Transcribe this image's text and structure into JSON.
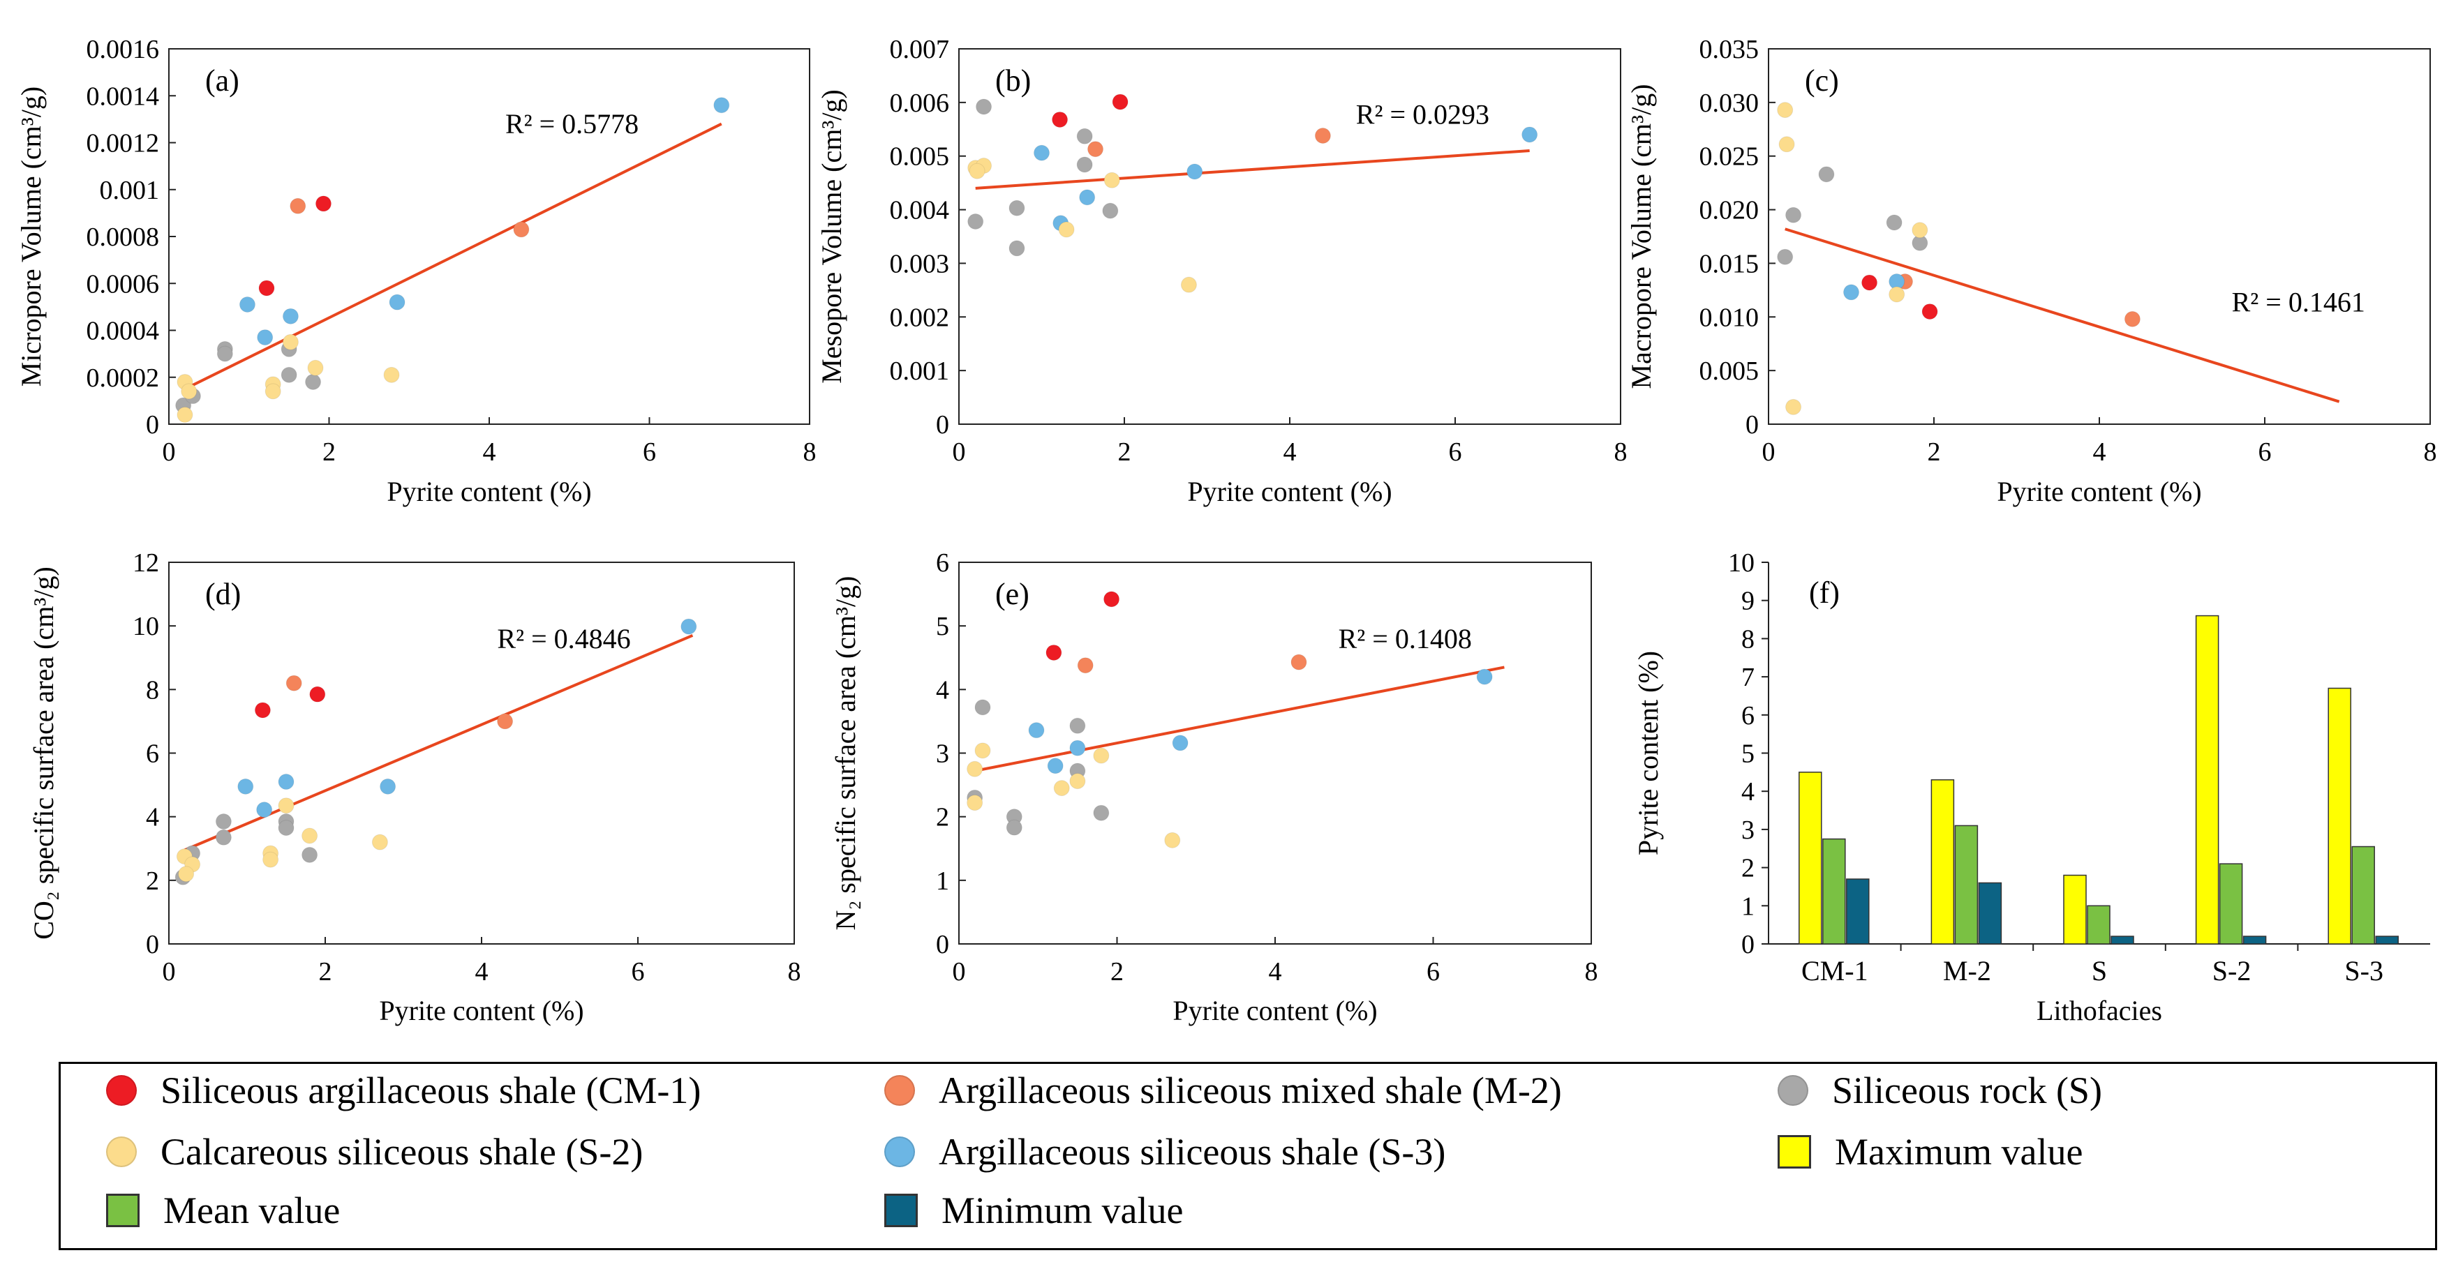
{
  "x_axis_label": "Pyrite content (%)",
  "colors": {
    "CM-1": "#ed1c24",
    "M-2": "#f4845a",
    "S": "#a8a8a8",
    "S-2": "#fcdc8c",
    "S-3": "#6cb6e4",
    "trend": "#e8461e",
    "max": "#ffff00",
    "mean": "#7ac143",
    "min": "#0c6384"
  },
  "legend": [
    {
      "type": "dot",
      "key": "CM-1",
      "label": "Siliceous argillaceous shale (CM-1)"
    },
    {
      "type": "dot",
      "key": "M-2",
      "label": "Argillaceous siliceous mixed shale (M-2)"
    },
    {
      "type": "dot",
      "key": "S",
      "label": "Siliceous rock (S)"
    },
    {
      "type": "dot",
      "key": "S-2",
      "label": "Calcareous siliceous shale (S-2)"
    },
    {
      "type": "dot",
      "key": "S-3",
      "label": "Argillaceous siliceous shale (S-3)"
    },
    {
      "type": "sq",
      "key": "max",
      "label": "Maximum value"
    },
    {
      "type": "sq",
      "key": "mean",
      "label": "Mean value"
    },
    {
      "type": "sq",
      "key": "min",
      "label": "Minimum value"
    }
  ],
  "chart_data": [
    {
      "panel": "(a)",
      "type": "scatter",
      "ylabel": "Micropore Volume (cm³/g)",
      "xlabel": "Pyrite content (%)",
      "xlim": [
        0,
        8
      ],
      "xticks": [
        "0",
        "2",
        "4",
        "6",
        "8"
      ],
      "ylim": [
        0,
        0.0016
      ],
      "yticks": [
        "0",
        "0.0002",
        "0.0004",
        "0.0006",
        "0.0008",
        "0.001",
        "0.0012",
        "0.0014",
        "0.0016"
      ],
      "r2_label": "R² = 0.5778",
      "r2_pos": [
        4.2,
        0.00124
      ],
      "trend": [
        [
          0.2,
          0.00015
        ],
        [
          6.9,
          0.00128
        ]
      ],
      "points": [
        {
          "g": "CM-1",
          "x": 1.22,
          "y": 0.00058
        },
        {
          "g": "CM-1",
          "x": 1.93,
          "y": 0.00094
        },
        {
          "g": "M-2",
          "x": 1.61,
          "y": 0.00093
        },
        {
          "g": "M-2",
          "x": 4.4,
          "y": 0.00083
        },
        {
          "g": "S-3",
          "x": 6.9,
          "y": 0.00136
        },
        {
          "g": "S-3",
          "x": 2.85,
          "y": 0.00052
        },
        {
          "g": "S-3",
          "x": 1.52,
          "y": 0.00046
        },
        {
          "g": "S-3",
          "x": 0.98,
          "y": 0.00051
        },
        {
          "g": "S-3",
          "x": 1.2,
          "y": 0.00037
        },
        {
          "g": "S",
          "x": 0.7,
          "y": 0.00032
        },
        {
          "g": "S",
          "x": 0.7,
          "y": 0.0003
        },
        {
          "g": "S",
          "x": 1.5,
          "y": 0.00032
        },
        {
          "g": "S",
          "x": 1.5,
          "y": 0.00021
        },
        {
          "g": "S",
          "x": 1.8,
          "y": 0.00018
        },
        {
          "g": "S",
          "x": 0.18,
          "y": 8e-05
        },
        {
          "g": "S",
          "x": 0.3,
          "y": 0.00012
        },
        {
          "g": "S-2",
          "x": 0.2,
          "y": 0.00018
        },
        {
          "g": "S-2",
          "x": 0.25,
          "y": 0.00014
        },
        {
          "g": "S-2",
          "x": 0.2,
          "y": 4e-05
        },
        {
          "g": "S-2",
          "x": 1.3,
          "y": 0.00017
        },
        {
          "g": "S-2",
          "x": 1.3,
          "y": 0.00014
        },
        {
          "g": "S-2",
          "x": 1.52,
          "y": 0.00035
        },
        {
          "g": "S-2",
          "x": 1.83,
          "y": 0.00024
        },
        {
          "g": "S-2",
          "x": 2.78,
          "y": 0.00021
        }
      ]
    },
    {
      "panel": "(b)",
      "type": "scatter",
      "ylabel": "Mesopore Volume (cm³/g)",
      "xlabel": "Pyrite content (%)",
      "xlim": [
        0,
        8
      ],
      "xticks": [
        "0",
        "2",
        "4",
        "6",
        "8"
      ],
      "ylim": [
        0,
        0.007
      ],
      "yticks": [
        "0",
        "0.001",
        "0.002",
        "0.003",
        "0.004",
        "0.005",
        "0.006",
        "0.007"
      ],
      "r2_label": "R² = 0.0293",
      "r2_pos": [
        4.8,
        0.0056
      ],
      "trend": [
        [
          0.2,
          0.0044
        ],
        [
          6.9,
          0.0051
        ]
      ],
      "points": [
        {
          "g": "CM-1",
          "x": 1.22,
          "y": 0.00568
        },
        {
          "g": "CM-1",
          "x": 1.95,
          "y": 0.00601
        },
        {
          "g": "M-2",
          "x": 1.65,
          "y": 0.00513
        },
        {
          "g": "M-2",
          "x": 4.4,
          "y": 0.00538
        },
        {
          "g": "S-3",
          "x": 6.9,
          "y": 0.0054
        },
        {
          "g": "S-3",
          "x": 2.85,
          "y": 0.00471
        },
        {
          "g": "S-3",
          "x": 1.0,
          "y": 0.00506
        },
        {
          "g": "S-3",
          "x": 1.55,
          "y": 0.00423
        },
        {
          "g": "S-3",
          "x": 1.23,
          "y": 0.00375
        },
        {
          "g": "S",
          "x": 0.3,
          "y": 0.00592
        },
        {
          "g": "S",
          "x": 1.52,
          "y": 0.00537
        },
        {
          "g": "S",
          "x": 1.52,
          "y": 0.00484
        },
        {
          "g": "S",
          "x": 0.7,
          "y": 0.00403
        },
        {
          "g": "S",
          "x": 1.83,
          "y": 0.00398
        },
        {
          "g": "S",
          "x": 0.2,
          "y": 0.00378
        },
        {
          "g": "S",
          "x": 0.7,
          "y": 0.00328
        },
        {
          "g": "S-2",
          "x": 0.2,
          "y": 0.00478
        },
        {
          "g": "S-2",
          "x": 0.3,
          "y": 0.00482
        },
        {
          "g": "S-2",
          "x": 0.22,
          "y": 0.00472
        },
        {
          "g": "S-2",
          "x": 1.85,
          "y": 0.00455
        },
        {
          "g": "S-2",
          "x": 1.3,
          "y": 0.00363
        },
        {
          "g": "S-2",
          "x": 2.78,
          "y": 0.0026
        }
      ]
    },
    {
      "panel": "(c)",
      "type": "scatter",
      "ylabel": "Macropore Volume (cm³/g)",
      "xlabel": "Pyrite content (%)",
      "xlim": [
        0,
        8
      ],
      "xticks": [
        "0",
        "2",
        "4",
        "6",
        "8"
      ],
      "ylim": [
        0,
        0.035
      ],
      "yticks": [
        "0",
        "0.005",
        "0.010",
        "0.015",
        "0.020",
        "0.025",
        "0.030",
        "0.035"
      ],
      "r2_label": "R² = 0.1461",
      "r2_pos": [
        5.6,
        0.0105
      ],
      "trend": [
        [
          0.2,
          0.0182
        ],
        [
          6.9,
          0.0021
        ]
      ],
      "points": [
        {
          "g": "CM-1",
          "x": 1.22,
          "y": 0.0132
        },
        {
          "g": "CM-1",
          "x": 1.95,
          "y": 0.0105
        },
        {
          "g": "M-2",
          "x": 1.65,
          "y": 0.0133
        },
        {
          "g": "M-2",
          "x": 4.4,
          "y": 0.0098
        },
        {
          "g": "S-3",
          "x": 1.0,
          "y": 0.0123
        },
        {
          "g": "S-3",
          "x": 1.55,
          "y": 0.0133
        },
        {
          "g": "S",
          "x": 0.7,
          "y": 0.0233
        },
        {
          "g": "S",
          "x": 0.3,
          "y": 0.0195
        },
        {
          "g": "S",
          "x": 0.2,
          "y": 0.0156
        },
        {
          "g": "S",
          "x": 1.52,
          "y": 0.0188
        },
        {
          "g": "S",
          "x": 1.83,
          "y": 0.0169
        },
        {
          "g": "S-2",
          "x": 0.2,
          "y": 0.0293
        },
        {
          "g": "S-2",
          "x": 0.22,
          "y": 0.0261
        },
        {
          "g": "S-2",
          "x": 1.83,
          "y": 0.0181
        },
        {
          "g": "S-2",
          "x": 1.55,
          "y": 0.0121
        },
        {
          "g": "S-2",
          "x": 0.3,
          "y": 0.0016
        }
      ]
    },
    {
      "panel": "(d)",
      "type": "scatter",
      "ylabel": "CO₂ specific surface area (cm³/g)",
      "xlabel": "Pyrite content (%)",
      "xlim": [
        0,
        8
      ],
      "xticks": [
        "0",
        "2",
        "4",
        "6",
        "8"
      ],
      "ylim": [
        0,
        12
      ],
      "yticks": [
        "0",
        "2",
        "4",
        "6",
        "8",
        "10",
        "12"
      ],
      "r2_label": "R² = 0.4846",
      "r2_pos": [
        4.2,
        9.3
      ],
      "trend": [
        [
          0.2,
          2.95
        ],
        [
          6.7,
          9.7
        ]
      ],
      "points": [
        {
          "g": "CM-1",
          "x": 1.2,
          "y": 7.35
        },
        {
          "g": "CM-1",
          "x": 1.9,
          "y": 7.85
        },
        {
          "g": "M-2",
          "x": 1.6,
          "y": 8.2
        },
        {
          "g": "M-2",
          "x": 4.3,
          "y": 7.0
        },
        {
          "g": "S-3",
          "x": 6.65,
          "y": 9.98
        },
        {
          "g": "S-3",
          "x": 2.8,
          "y": 4.95
        },
        {
          "g": "S-3",
          "x": 0.98,
          "y": 4.95
        },
        {
          "g": "S-3",
          "x": 1.5,
          "y": 5.1
        },
        {
          "g": "S-3",
          "x": 1.22,
          "y": 4.22
        },
        {
          "g": "S",
          "x": 0.7,
          "y": 3.85
        },
        {
          "g": "S",
          "x": 0.7,
          "y": 3.35
        },
        {
          "g": "S",
          "x": 1.5,
          "y": 3.85
        },
        {
          "g": "S",
          "x": 1.5,
          "y": 3.65
        },
        {
          "g": "S",
          "x": 1.8,
          "y": 2.8
        },
        {
          "g": "S",
          "x": 0.18,
          "y": 2.1
        },
        {
          "g": "S",
          "x": 0.3,
          "y": 2.85
        },
        {
          "g": "S-2",
          "x": 0.2,
          "y": 2.75
        },
        {
          "g": "S-2",
          "x": 0.3,
          "y": 2.5
        },
        {
          "g": "S-2",
          "x": 0.22,
          "y": 2.2
        },
        {
          "g": "S-2",
          "x": 1.3,
          "y": 2.85
        },
        {
          "g": "S-2",
          "x": 1.3,
          "y": 2.65
        },
        {
          "g": "S-2",
          "x": 1.5,
          "y": 4.35
        },
        {
          "g": "S-2",
          "x": 1.8,
          "y": 3.4
        },
        {
          "g": "S-2",
          "x": 2.7,
          "y": 3.2
        }
      ]
    },
    {
      "panel": "(e)",
      "type": "scatter",
      "ylabel": "N₂ specific surface area (cm³/g)",
      "xlabel": "Pyrite content (%)",
      "xlim": [
        0,
        8
      ],
      "xticks": [
        "0",
        "2",
        "4",
        "6",
        "8"
      ],
      "ylim": [
        0,
        6
      ],
      "yticks": [
        "0",
        "1",
        "2",
        "3",
        "4",
        "5",
        "6"
      ],
      "r2_label": "R² = 0.1408",
      "r2_pos": [
        4.8,
        4.65
      ],
      "trend": [
        [
          0.2,
          2.72
        ],
        [
          6.9,
          4.35
        ]
      ],
      "points": [
        {
          "g": "CM-1",
          "x": 1.2,
          "y": 4.58
        },
        {
          "g": "CM-1",
          "x": 1.93,
          "y": 5.42
        },
        {
          "g": "M-2",
          "x": 1.6,
          "y": 4.38
        },
        {
          "g": "M-2",
          "x": 4.3,
          "y": 4.43
        },
        {
          "g": "S-3",
          "x": 6.65,
          "y": 4.2
        },
        {
          "g": "S-3",
          "x": 2.8,
          "y": 3.16
        },
        {
          "g": "S-3",
          "x": 0.98,
          "y": 3.36
        },
        {
          "g": "S-3",
          "x": 1.5,
          "y": 3.08
        },
        {
          "g": "S-3",
          "x": 1.22,
          "y": 2.8
        },
        {
          "g": "S",
          "x": 0.3,
          "y": 3.72
        },
        {
          "g": "S",
          "x": 1.5,
          "y": 3.43
        },
        {
          "g": "S",
          "x": 1.5,
          "y": 2.72
        },
        {
          "g": "S",
          "x": 0.7,
          "y": 2.0
        },
        {
          "g": "S",
          "x": 0.7,
          "y": 1.83
        },
        {
          "g": "S",
          "x": 1.8,
          "y": 2.06
        },
        {
          "g": "S",
          "x": 0.2,
          "y": 2.3
        },
        {
          "g": "S-2",
          "x": 0.2,
          "y": 2.75
        },
        {
          "g": "S-2",
          "x": 0.3,
          "y": 3.04
        },
        {
          "g": "S-2",
          "x": 0.2,
          "y": 2.22
        },
        {
          "g": "S-2",
          "x": 1.3,
          "y": 2.45
        },
        {
          "g": "S-2",
          "x": 1.5,
          "y": 2.56
        },
        {
          "g": "S-2",
          "x": 1.8,
          "y": 2.96
        },
        {
          "g": "S-2",
          "x": 2.7,
          "y": 1.63
        }
      ]
    },
    {
      "panel": "(f)",
      "type": "bar",
      "ylabel": "Pyrite content (%)",
      "xlabel": "Lithofacies",
      "ylim": [
        0,
        10
      ],
      "yticks": [
        "0",
        "1",
        "2",
        "3",
        "4",
        "5",
        "6",
        "7",
        "8",
        "9",
        "10"
      ],
      "categories": [
        "CM-1",
        "M-2",
        "S",
        "S-2",
        "S-3"
      ],
      "series": [
        {
          "name": "Maximum value",
          "key": "max",
          "values": [
            4.5,
            4.3,
            1.8,
            8.6,
            6.7
          ]
        },
        {
          "name": "Mean value",
          "key": "mean",
          "values": [
            2.75,
            3.1,
            1.0,
            2.1,
            2.55
          ]
        },
        {
          "name": "Minimum value",
          "key": "min",
          "values": [
            1.7,
            1.6,
            0.2,
            0.2,
            0.2
          ]
        }
      ]
    }
  ]
}
